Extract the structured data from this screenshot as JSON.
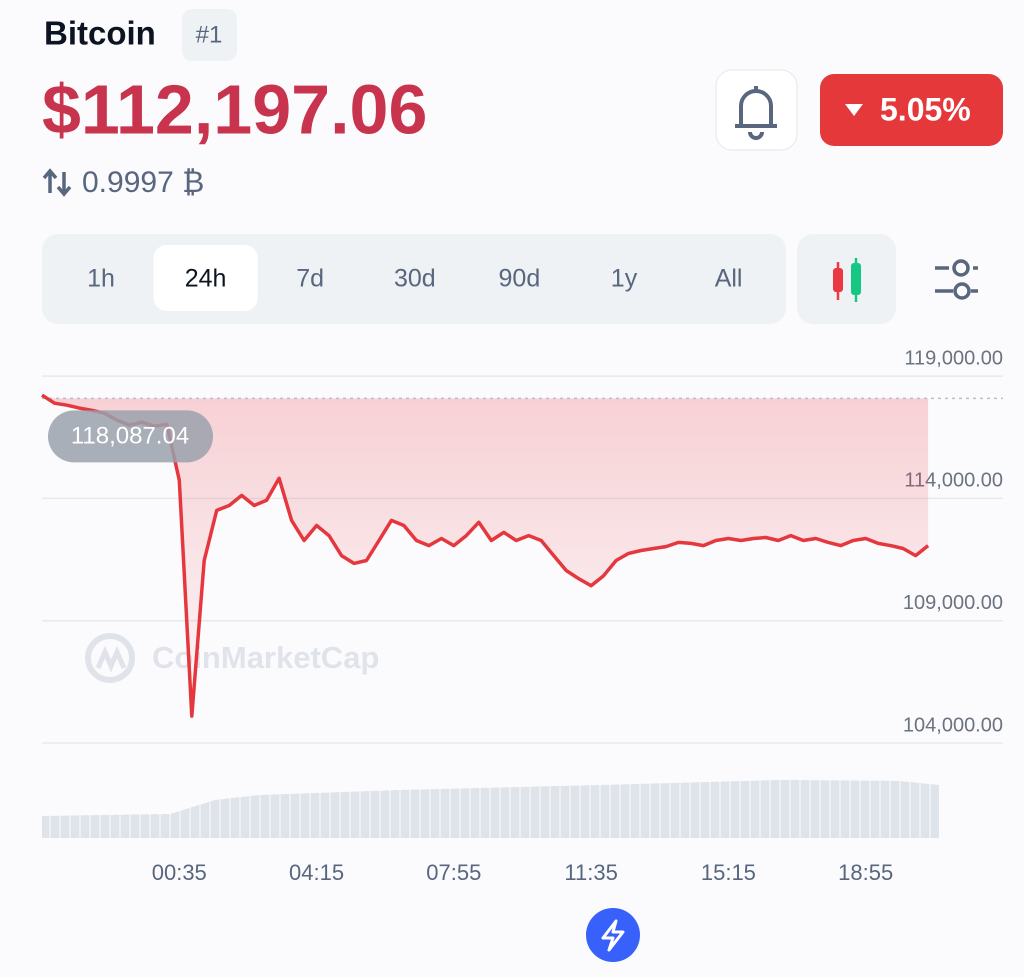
{
  "header": {
    "name": "Bitcoin",
    "rank": "#1",
    "price": "$112,197.06",
    "btc_amount": "0.9997 ₿",
    "change": "5.05%"
  },
  "tabs": [
    "1h",
    "24h",
    "7d",
    "30d",
    "90d",
    "1y",
    "All"
  ],
  "chart_data": {
    "type": "line",
    "watermark": "CoinMarketCap",
    "x": [
      "20:55",
      "21:15",
      "21:35",
      "21:55",
      "22:15",
      "22:35",
      "22:55",
      "23:15",
      "23:35",
      "23:55",
      "00:15",
      "00:35",
      "00:55",
      "01:15",
      "01:35",
      "01:55",
      "02:15",
      "02:35",
      "02:55",
      "03:15",
      "03:35",
      "03:55",
      "04:15",
      "04:35",
      "04:55",
      "05:15",
      "05:35",
      "05:55",
      "06:15",
      "06:35",
      "06:55",
      "07:15",
      "07:35",
      "07:55",
      "08:15",
      "08:35",
      "08:55",
      "09:15",
      "09:35",
      "09:55",
      "10:15",
      "10:35",
      "10:55",
      "11:15",
      "11:35",
      "11:55",
      "12:15",
      "12:35",
      "12:55",
      "13:15",
      "13:35",
      "13:55",
      "14:15",
      "14:35",
      "14:55",
      "15:15",
      "15:35",
      "15:55",
      "16:15",
      "16:35",
      "16:55",
      "17:15",
      "17:35",
      "17:55",
      "18:15",
      "18:35",
      "18:55",
      "19:15",
      "19:35",
      "19:55",
      "20:15",
      "20:35"
    ],
    "series": [
      {
        "color": "#e5383e",
        "values": [
          118220,
          117890,
          117810,
          117690,
          117600,
          117480,
          117200,
          116990,
          117110,
          116950,
          117030,
          114740,
          105100,
          111460,
          113510,
          113710,
          114120,
          113710,
          113920,
          114820,
          113100,
          112280,
          112890,
          112480,
          111660,
          111340,
          111460,
          112280,
          113100,
          112890,
          112280,
          112070,
          112360,
          112070,
          112480,
          113020,
          112280,
          112610,
          112280,
          112480,
          112280,
          111660,
          111050,
          110720,
          110430,
          110840,
          111460,
          111750,
          111870,
          111950,
          112030,
          112200,
          112160,
          112070,
          112280,
          112360,
          112280,
          112360,
          112400,
          112280,
          112480,
          112280,
          112360,
          112200,
          112070,
          112280,
          112360,
          112160,
          112070,
          111950,
          111660,
          112070
        ]
      }
    ],
    "reference_line": {
      "value": 118087.04,
      "label": "118,087.04"
    },
    "ylim": [
      104000,
      120000
    ],
    "yticks": [
      {
        "value": 104000,
        "label": "104,000.00"
      },
      {
        "value": 109000,
        "label": "109,000.00"
      },
      {
        "value": 114000,
        "label": "114,000.00"
      },
      {
        "value": 119000,
        "label": "119,000.00"
      }
    ],
    "xticks": [
      "00:35",
      "04:15",
      "07:55",
      "11:35",
      "15:15",
      "18:55"
    ],
    "grid": true
  }
}
